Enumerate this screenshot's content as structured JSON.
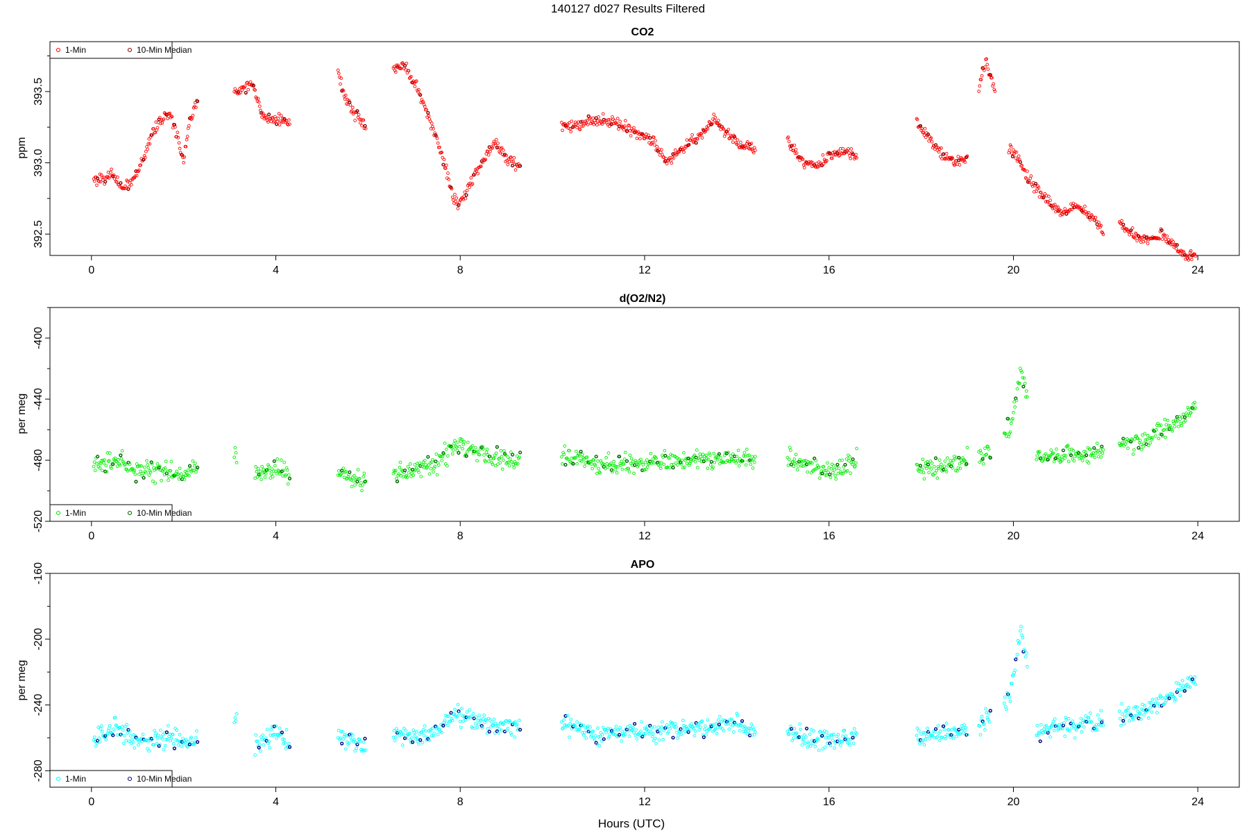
{
  "page": {
    "title": "140127   d027   Results Filtered",
    "xlabel": "Hours (UTC)"
  },
  "chart_data": [
    {
      "type": "scatter",
      "title": "CO2",
      "ylabel": "ppm",
      "xlim": [
        -0.9,
        24.9
      ],
      "ylim": [
        392.35,
        393.85
      ],
      "x_ticks": [
        0,
        4,
        8,
        12,
        16,
        20,
        24
      ],
      "y_ticks": [
        392.5,
        393.0,
        393.5
      ],
      "y_tick_labels": [
        "392.5",
        "393.0",
        "393.5"
      ],
      "legend_position": "top-left",
      "series": [
        {
          "name": "1-Min",
          "color": "#ff0000",
          "marker": "open-circle"
        },
        {
          "name": "10-Min Median",
          "color": "#8b0000",
          "marker": "open-circle"
        }
      ],
      "segments": [
        {
          "x": [
            0.05,
            0.3,
            0.4,
            0.55,
            0.7,
            0.9,
            1.1,
            1.3,
            1.5,
            1.7,
            1.85,
            2.0,
            2.1,
            2.3
          ],
          "y": [
            392.88,
            392.9,
            392.92,
            392.87,
            392.82,
            392.88,
            393.0,
            393.2,
            393.3,
            393.35,
            393.2,
            393.0,
            393.25,
            393.45
          ]
        },
        {
          "x": [
            3.1,
            3.5,
            3.7,
            3.9,
            4.05,
            4.3
          ],
          "y": [
            393.5,
            393.55,
            393.35,
            393.3,
            393.3,
            393.28
          ]
        },
        {
          "x": [
            5.35,
            5.5,
            5.7,
            5.85,
            5.95
          ],
          "y": [
            393.65,
            393.45,
            393.35,
            393.3,
            393.25
          ]
        },
        {
          "x": [
            6.55,
            6.75,
            6.95,
            7.15,
            7.35,
            7.55,
            7.7,
            7.85,
            7.95,
            8.15,
            8.35,
            8.55,
            8.75,
            8.95,
            9.15,
            9.3
          ],
          "y": [
            393.65,
            393.7,
            393.6,
            393.45,
            393.3,
            393.1,
            392.95,
            392.75,
            392.7,
            392.8,
            392.95,
            393.05,
            393.15,
            393.05,
            393.0,
            392.97
          ]
        },
        {
          "x": [
            10.2,
            10.6,
            11.0,
            11.4,
            11.8,
            12.2,
            12.5,
            12.8,
            13.2,
            13.5,
            13.8,
            14.1,
            14.4
          ],
          "y": [
            393.25,
            393.28,
            393.3,
            393.28,
            393.22,
            393.15,
            393.0,
            393.1,
            393.2,
            393.3,
            393.2,
            393.12,
            393.1
          ]
        },
        {
          "x": [
            15.1,
            15.4,
            15.7,
            16.0,
            16.3,
            16.6
          ],
          "y": [
            393.15,
            393.02,
            392.98,
            393.05,
            393.08,
            393.04
          ]
        },
        {
          "x": [
            17.9,
            18.2,
            18.5,
            18.8,
            19.0
          ],
          "y": [
            393.3,
            393.15,
            393.05,
            393.0,
            393.05
          ]
        },
        {
          "x": [
            19.25,
            19.4,
            19.6
          ],
          "y": [
            393.55,
            393.7,
            393.5
          ]
        },
        {
          "x": [
            19.9,
            20.1,
            20.3,
            20.6,
            21.0,
            21.4,
            21.8,
            21.95
          ],
          "y": [
            393.1,
            393.05,
            392.9,
            392.78,
            392.65,
            392.7,
            392.6,
            392.5
          ]
        },
        {
          "x": [
            22.3,
            22.6,
            22.9,
            23.2,
            23.5,
            23.8,
            23.95
          ],
          "y": [
            392.58,
            392.5,
            392.45,
            392.5,
            392.42,
            392.32,
            392.38
          ]
        }
      ]
    },
    {
      "type": "scatter",
      "title": "d(O2/N2)",
      "ylabel": "per meg",
      "xlim": [
        -0.9,
        24.9
      ],
      "ylim": [
        -520,
        -380
      ],
      "x_ticks": [
        0,
        4,
        8,
        12,
        16,
        20,
        24
      ],
      "y_ticks": [
        -400,
        -440,
        -480,
        -520
      ],
      "y_tick_labels": [
        "-400",
        "-440",
        "-480",
        "-520"
      ],
      "legend_position": "bottom-left",
      "series": [
        {
          "name": "1-Min",
          "color": "#00ee00",
          "marker": "open-circle"
        },
        {
          "name": "10-Min Median",
          "color": "#006400",
          "marker": "open-circle"
        }
      ],
      "segments": [
        {
          "x": [
            0.05,
            0.5,
            1.0,
            1.5,
            2.0,
            2.3
          ],
          "y": [
            -485,
            -478,
            -488,
            -487,
            -490,
            -485
          ]
        },
        {
          "x": [
            3.1,
            3.15
          ],
          "y": [
            -477,
            -477
          ]
        },
        {
          "x": [
            3.55,
            3.9,
            4.3
          ],
          "y": [
            -490,
            -485,
            -488
          ]
        },
        {
          "x": [
            5.35,
            5.65,
            5.95
          ],
          "y": [
            -488,
            -492,
            -495
          ]
        },
        {
          "x": [
            6.55,
            7.0,
            7.5,
            7.9,
            8.3,
            8.8,
            9.3
          ],
          "y": [
            -487,
            -487,
            -482,
            -470,
            -472,
            -478,
            -480
          ]
        },
        {
          "x": [
            10.2,
            11.0,
            12.0,
            13.0,
            14.0,
            14.4
          ],
          "y": [
            -478,
            -482,
            -482,
            -480,
            -478,
            -482
          ]
        },
        {
          "x": [
            15.1,
            15.6,
            16.1,
            16.6
          ],
          "y": [
            -480,
            -484,
            -488,
            -480
          ]
        },
        {
          "x": [
            17.9,
            18.5,
            19.0
          ],
          "y": [
            -485,
            -484,
            -480
          ]
        },
        {
          "x": [
            19.25,
            19.5
          ],
          "y": [
            -478,
            -475
          ]
        },
        {
          "x": [
            19.8,
            20.0,
            20.15,
            20.3
          ],
          "y": [
            -465,
            -450,
            -420,
            -440
          ]
        },
        {
          "x": [
            20.5,
            21.0,
            21.5,
            21.95
          ],
          "y": [
            -478,
            -478,
            -476,
            -475
          ]
        },
        {
          "x": [
            22.3,
            22.8,
            23.2,
            23.6,
            23.95
          ],
          "y": [
            -470,
            -468,
            -460,
            -455,
            -445
          ]
        }
      ]
    },
    {
      "type": "scatter",
      "title": "APO",
      "ylabel": "per meg",
      "xlim": [
        -0.9,
        24.9
      ],
      "ylim": [
        -290,
        -160
      ],
      "x_ticks": [
        0,
        4,
        8,
        12,
        16,
        20,
        24
      ],
      "y_ticks": [
        -160,
        -200,
        -240,
        -280
      ],
      "y_tick_labels": [
        "-160",
        "-200",
        "-240",
        "-280"
      ],
      "legend_position": "bottom-left",
      "series": [
        {
          "name": "1-Min",
          "color": "#00ffff",
          "marker": "open-circle"
        },
        {
          "name": "10-Min Median",
          "color": "#000080",
          "marker": "open-circle"
        }
      ],
      "segments": [
        {
          "x": [
            0.05,
            0.5,
            1.0,
            1.5,
            2.0,
            2.3
          ],
          "y": [
            -262,
            -255,
            -262,
            -260,
            -262,
            -260
          ]
        },
        {
          "x": [
            3.1,
            3.15
          ],
          "y": [
            -249,
            -249
          ]
        },
        {
          "x": [
            3.55,
            3.9,
            4.3
          ],
          "y": [
            -265,
            -258,
            -262
          ]
        },
        {
          "x": [
            5.35,
            5.65,
            5.95
          ],
          "y": [
            -260,
            -262,
            -265
          ]
        },
        {
          "x": [
            6.55,
            7.0,
            7.5,
            7.9,
            8.3,
            8.8,
            9.3
          ],
          "y": [
            -258,
            -260,
            -256,
            -245,
            -250,
            -253,
            -254
          ]
        },
        {
          "x": [
            10.2,
            11.0,
            12.0,
            13.0,
            14.0,
            14.4
          ],
          "y": [
            -252,
            -258,
            -256,
            -254,
            -252,
            -256
          ]
        },
        {
          "x": [
            15.1,
            15.6,
            16.1,
            16.6
          ],
          "y": [
            -256,
            -260,
            -262,
            -258
          ]
        },
        {
          "x": [
            17.9,
            18.5,
            19.0
          ],
          "y": [
            -260,
            -258,
            -255
          ]
        },
        {
          "x": [
            19.25,
            19.5
          ],
          "y": [
            -252,
            -248
          ]
        },
        {
          "x": [
            19.8,
            20.0,
            20.15,
            20.3
          ],
          "y": [
            -240,
            -225,
            -195,
            -215
          ]
        },
        {
          "x": [
            20.5,
            21.0,
            21.5,
            21.95
          ],
          "y": [
            -256,
            -254,
            -252,
            -250
          ]
        },
        {
          "x": [
            22.3,
            22.8,
            23.2,
            23.6,
            23.95
          ],
          "y": [
            -248,
            -244,
            -238,
            -232,
            -222
          ]
        }
      ]
    }
  ]
}
